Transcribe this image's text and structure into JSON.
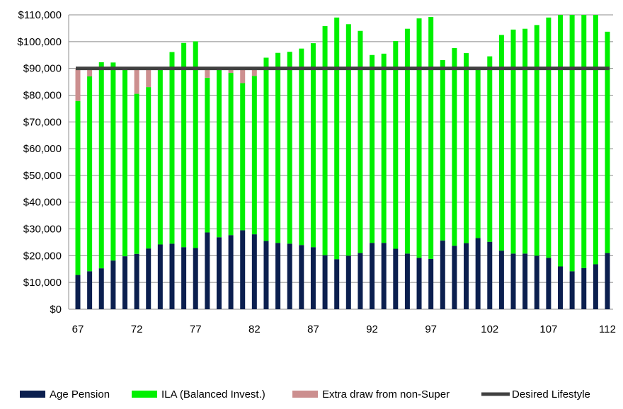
{
  "chart_data": {
    "type": "bar",
    "stacked": true,
    "x": [
      67,
      68,
      69,
      70,
      71,
      72,
      73,
      74,
      75,
      76,
      77,
      78,
      79,
      80,
      81,
      82,
      83,
      84,
      85,
      86,
      87,
      88,
      89,
      90,
      91,
      92,
      93,
      94,
      95,
      96,
      97,
      98,
      99,
      100,
      101,
      102,
      103,
      104,
      105,
      106,
      107,
      108,
      109,
      110,
      111,
      112
    ],
    "x_tick_labels": [
      "67",
      "72",
      "77",
      "82",
      "87",
      "92",
      "97",
      "102",
      "107",
      "112"
    ],
    "y_tick_labels": [
      "$0",
      "$10,000",
      "$20,000",
      "$30,000",
      "$40,000",
      "$50,000",
      "$60,000",
      "$70,000",
      "$80,000",
      "$90,000",
      "$100,000",
      "$110,000"
    ],
    "ylim": [
      0,
      110000
    ],
    "grid": "horizontal",
    "legend_position": "bottom",
    "series": [
      {
        "name": "Age Pension",
        "color": "#0b1f4f",
        "values": [
          12800,
          14200,
          15300,
          18200,
          19800,
          20700,
          22700,
          24200,
          24500,
          23200,
          22900,
          28700,
          26900,
          27700,
          29500,
          28000,
          25500,
          24800,
          24500,
          24000,
          23200,
          20200,
          18700,
          20000,
          21000,
          24800,
          24800,
          22600,
          20800,
          19200,
          18800,
          25700,
          23700,
          24700,
          26600,
          25200,
          21900,
          20800,
          20800,
          20000,
          19200,
          16000,
          14200,
          15400,
          16800,
          21000
        ]
      },
      {
        "name": "ILA (Balanced Invest.)",
        "color": "#00f000",
        "values": [
          65000,
          72800,
          77000,
          74000,
          70200,
          59800,
          60300,
          65800,
          71600,
          76300,
          77200,
          57800,
          62500,
          60600,
          55000,
          59200,
          68500,
          71000,
          71700,
          73400,
          76200,
          85600,
          90300,
          86500,
          83000,
          70200,
          70700,
          77600,
          84000,
          89500,
          90400,
          67400,
          73900,
          71000,
          63900,
          69300,
          80600,
          83700,
          84000,
          86200,
          89800,
          94000,
          95800,
          94600,
          93200,
          82700
        ]
      },
      {
        "name": "Extra draw from non-Super",
        "color": "#cc8f8f",
        "values": [
          12200,
          3000,
          0,
          0,
          0,
          9500,
          7000,
          0,
          0,
          0,
          0,
          3500,
          600,
          1700,
          5500,
          2800,
          0,
          0,
          0,
          0,
          0,
          0,
          0,
          0,
          0,
          0,
          0,
          0,
          0,
          0,
          0,
          0,
          0,
          0,
          0,
          0,
          0,
          0,
          0,
          0,
          0,
          0,
          0,
          0,
          0,
          0
        ]
      }
    ],
    "line": {
      "name": "Desired Lifestyle",
      "value": 90000,
      "color": "#404040"
    }
  },
  "legend": [
    {
      "label": "Age Pension",
      "color": "#0b1f4f",
      "kind": "box"
    },
    {
      "label": "ILA (Balanced Invest.)",
      "color": "#00f000",
      "kind": "box"
    },
    {
      "label": "Extra draw from non-Super",
      "color": "#cc8f8f",
      "kind": "box"
    },
    {
      "label": "Desired Lifestyle",
      "color": "#404040",
      "kind": "line"
    }
  ]
}
